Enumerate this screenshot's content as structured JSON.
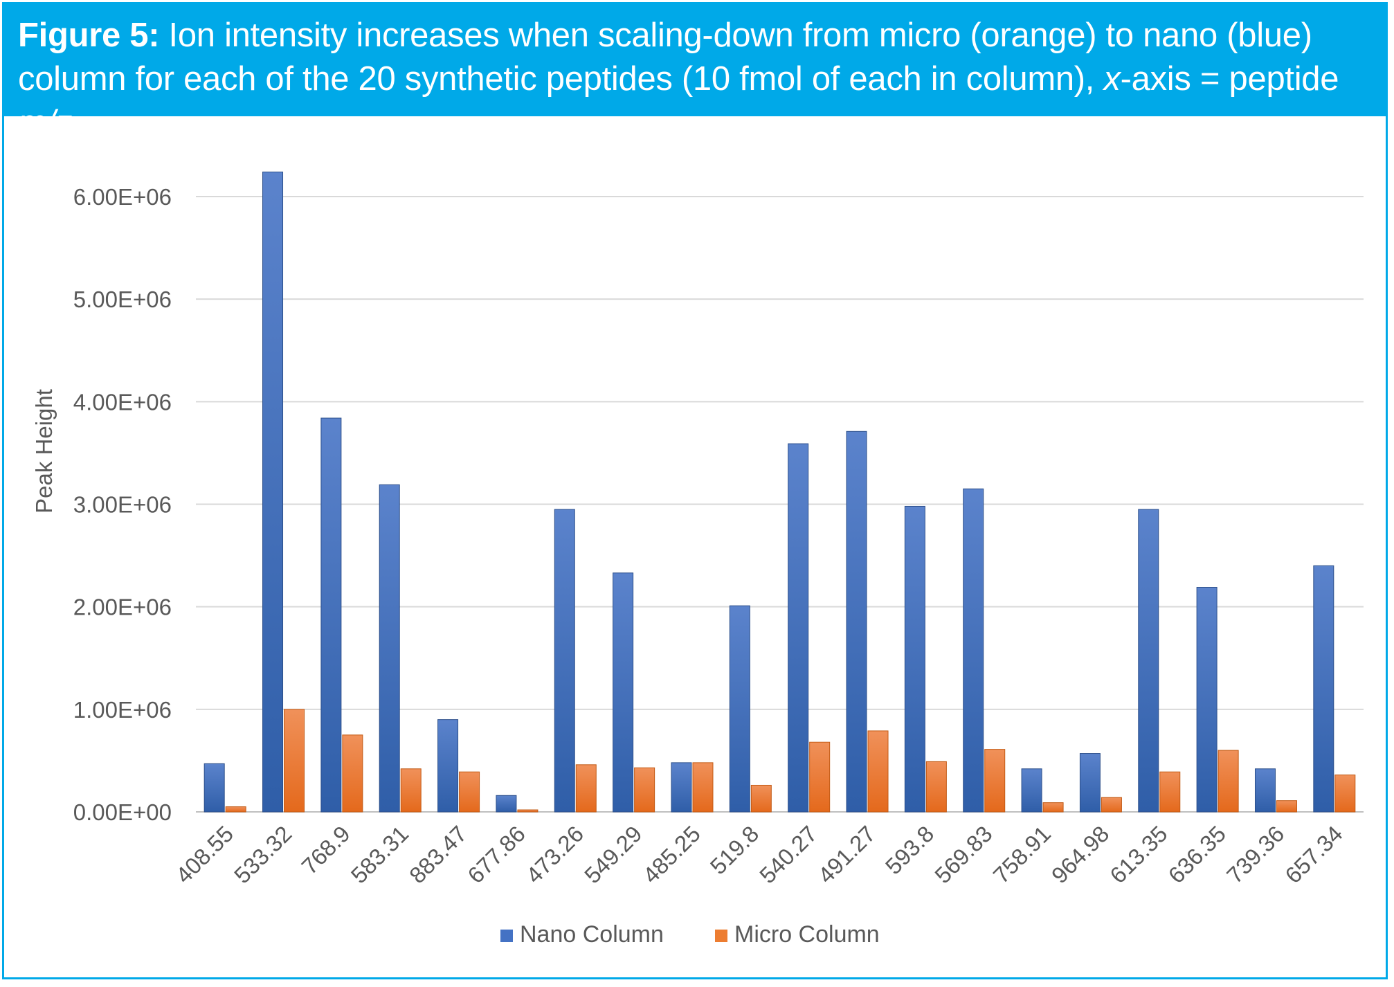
{
  "header": {
    "lead": "Figure 5:",
    "text_1": " Ion intensity increases when scaling-down from micro (orange) to nano (blue) column for each of the 20 synthetic peptides (10 fmol of each in column), ",
    "italic_x": "x",
    "text_2": "-axis = peptide ",
    "italic_mz": "m/z",
    "text_3": "."
  },
  "colors": {
    "header_bg": "#00a9e8",
    "nano": "#4472c4",
    "micro": "#ed7d31",
    "grid": "#d9d9d9",
    "text": "#595959"
  },
  "chart_data": {
    "type": "bar",
    "title": "",
    "xlabel": "",
    "ylabel": "Peak Height",
    "ylim": [
      0,
      6500000
    ],
    "yticks": [
      0,
      1000000,
      2000000,
      3000000,
      4000000,
      5000000,
      6000000
    ],
    "ytick_labels": [
      "0.00E+00",
      "1.00E+06",
      "2.00E+06",
      "3.00E+06",
      "4.00E+06",
      "5.00E+06",
      "6.00E+06"
    ],
    "categories": [
      "408.55",
      "533.32",
      "768.9",
      "583.31",
      "883.47",
      "677.86",
      "473.26",
      "549.29",
      "485.25",
      "519.8",
      "540.27",
      "491.27",
      "593.8",
      "569.83",
      "758.91",
      "964.98",
      "613.35",
      "636.35",
      "739.36",
      "657.34"
    ],
    "series": [
      {
        "name": "Nano Column",
        "values": [
          470000,
          6240000,
          3840000,
          3190000,
          900000,
          160000,
          2950000,
          2330000,
          480000,
          2010000,
          3590000,
          3710000,
          2980000,
          3150000,
          420000,
          570000,
          2950000,
          2190000,
          420000,
          2400000
        ]
      },
      {
        "name": "Micro Column",
        "values": [
          50000,
          1000000,
          750000,
          420000,
          390000,
          20000,
          460000,
          430000,
          480000,
          260000,
          680000,
          790000,
          490000,
          610000,
          90000,
          140000,
          390000,
          600000,
          110000,
          360000
        ]
      }
    ],
    "legend_position": "bottom"
  }
}
